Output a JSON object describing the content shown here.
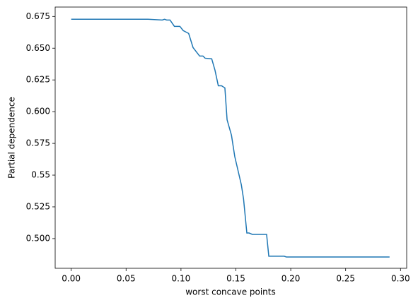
{
  "chart_data": {
    "type": "line",
    "x_label": "worst concave points",
    "y_label": "Partial dependence",
    "x": [
      0,
      0.07,
      0.083,
      0.085,
      0.087,
      0.09,
      0.094,
      0.099,
      0.102,
      0.107,
      0.111,
      0.117,
      0.12,
      0.122,
      0.128,
      0.131,
      0.134,
      0.137,
      0.14,
      0.142,
      0.146,
      0.149,
      0.152,
      0.155,
      0.157,
      0.16,
      0.162,
      0.165,
      0.178,
      0.18,
      0.194,
      0.196,
      0.29
    ],
    "series": [
      {
        "name": "Partial dependence",
        "color": "#1f77b4",
        "values": [
          0.6728,
          0.6728,
          0.6722,
          0.6728,
          0.6722,
          0.6722,
          0.6672,
          0.6672,
          0.6639,
          0.6616,
          0.6505,
          0.6438,
          0.6438,
          0.6421,
          0.6416,
          0.6326,
          0.6204,
          0.6204,
          0.6187,
          0.5936,
          0.5814,
          0.5646,
          0.5535,
          0.5423,
          0.5312,
          0.5044,
          0.5044,
          0.5033,
          0.5033,
          0.4861,
          0.4861,
          0.4855,
          0.4855
        ]
      }
    ],
    "xlim": [
      -0.0146,
      0.3056
    ],
    "ylim": [
      0.4766,
      0.6824
    ],
    "xticks": [
      {
        "value": 0,
        "label": "0.00"
      },
      {
        "value": 0.05,
        "label": "0.05"
      },
      {
        "value": 0.1,
        "label": "0.10"
      },
      {
        "value": 0.15,
        "label": "0.15"
      },
      {
        "value": 0.2,
        "label": "0.20"
      },
      {
        "value": 0.25,
        "label": "0.25"
      },
      {
        "value": 0.3,
        "label": "0.30"
      }
    ],
    "yticks": [
      {
        "value": 0.5,
        "label": "0.500"
      },
      0.525,
      0.55,
      0.575,
      {
        "value": 0.6,
        "label": "0.600"
      },
      0.625,
      {
        "value": 0.65,
        "label": "0.650"
      },
      0.675
    ],
    "grid": false
  }
}
